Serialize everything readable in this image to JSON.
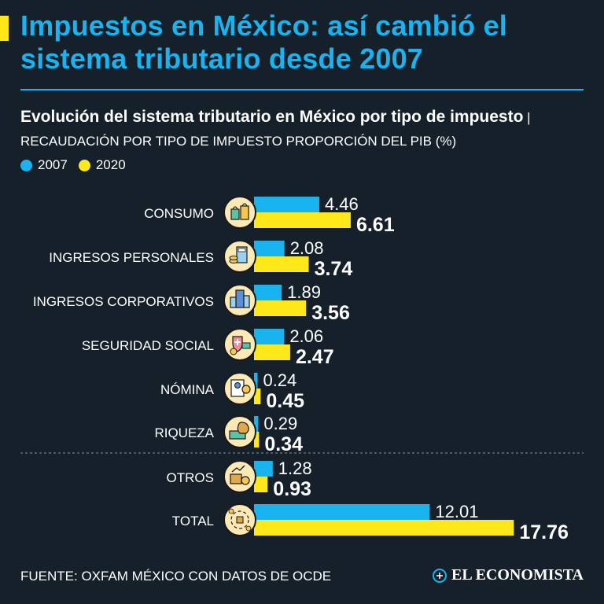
{
  "header": {
    "title": "Impuestos en México: así cambió el sistema tributario desde 2007",
    "subtitle_bold": "Evolución del sistema tributario en México por tipo de impuesto",
    "subtitle_separator": " | ",
    "subtitle_light": "RECAUDACIÓN POR TIPO DE IMPUESTO PROPORCIÓN DEL PIB (%)"
  },
  "colors": {
    "background": "#15202b",
    "accent_blue": "#19b4f0",
    "accent_yellow": "#ffe81a"
  },
  "chart_data": {
    "type": "bar",
    "orientation": "horizontal",
    "title": "Evolución del sistema tributario en México por tipo de impuesto",
    "ylabel": "RECAUDACIÓN POR TIPO DE IMPUESTO PROPORCIÓN DEL PIB (%)",
    "legend_position": "top-left",
    "categories": [
      "CONSUMO",
      "INGRESOS PERSONALES",
      "INGRESOS CORPORATIVOS",
      "SEGURIDAD SOCIAL",
      "NÓMINA",
      "RIQUEZA",
      "OTROS",
      "TOTAL"
    ],
    "icons": [
      "shopping-bags-icon",
      "calculator-coins-icon",
      "office-building-icon",
      "health-shield-icon",
      "payroll-id-icon",
      "money-stack-icon",
      "boxes-chart-icon",
      "cycle-arrows-icon"
    ],
    "series": [
      {
        "name": "2007",
        "color": "#19b4f0",
        "values": [
          4.46,
          2.08,
          1.89,
          2.06,
          0.24,
          0.29,
          1.28,
          12.01
        ],
        "labels": [
          "4.46",
          "2.08",
          "1.89",
          "2.06",
          "0.24",
          "0.29",
          "1.28",
          "12.01"
        ]
      },
      {
        "name": "2020",
        "color": "#ffe81a",
        "values": [
          6.61,
          3.74,
          3.56,
          2.47,
          0.45,
          0.34,
          0.93,
          17.76
        ],
        "labels": [
          "6.61",
          "3.74",
          "3.56",
          "2.47",
          "0.45",
          "0.34",
          "0.93",
          "17.76"
        ]
      }
    ],
    "separator_before": "OTROS"
  },
  "footer": {
    "source": "FUENTE: OXFAM MÉXICO CON DATOS DE OCDE",
    "brand": "EL ECONOMISTA"
  }
}
